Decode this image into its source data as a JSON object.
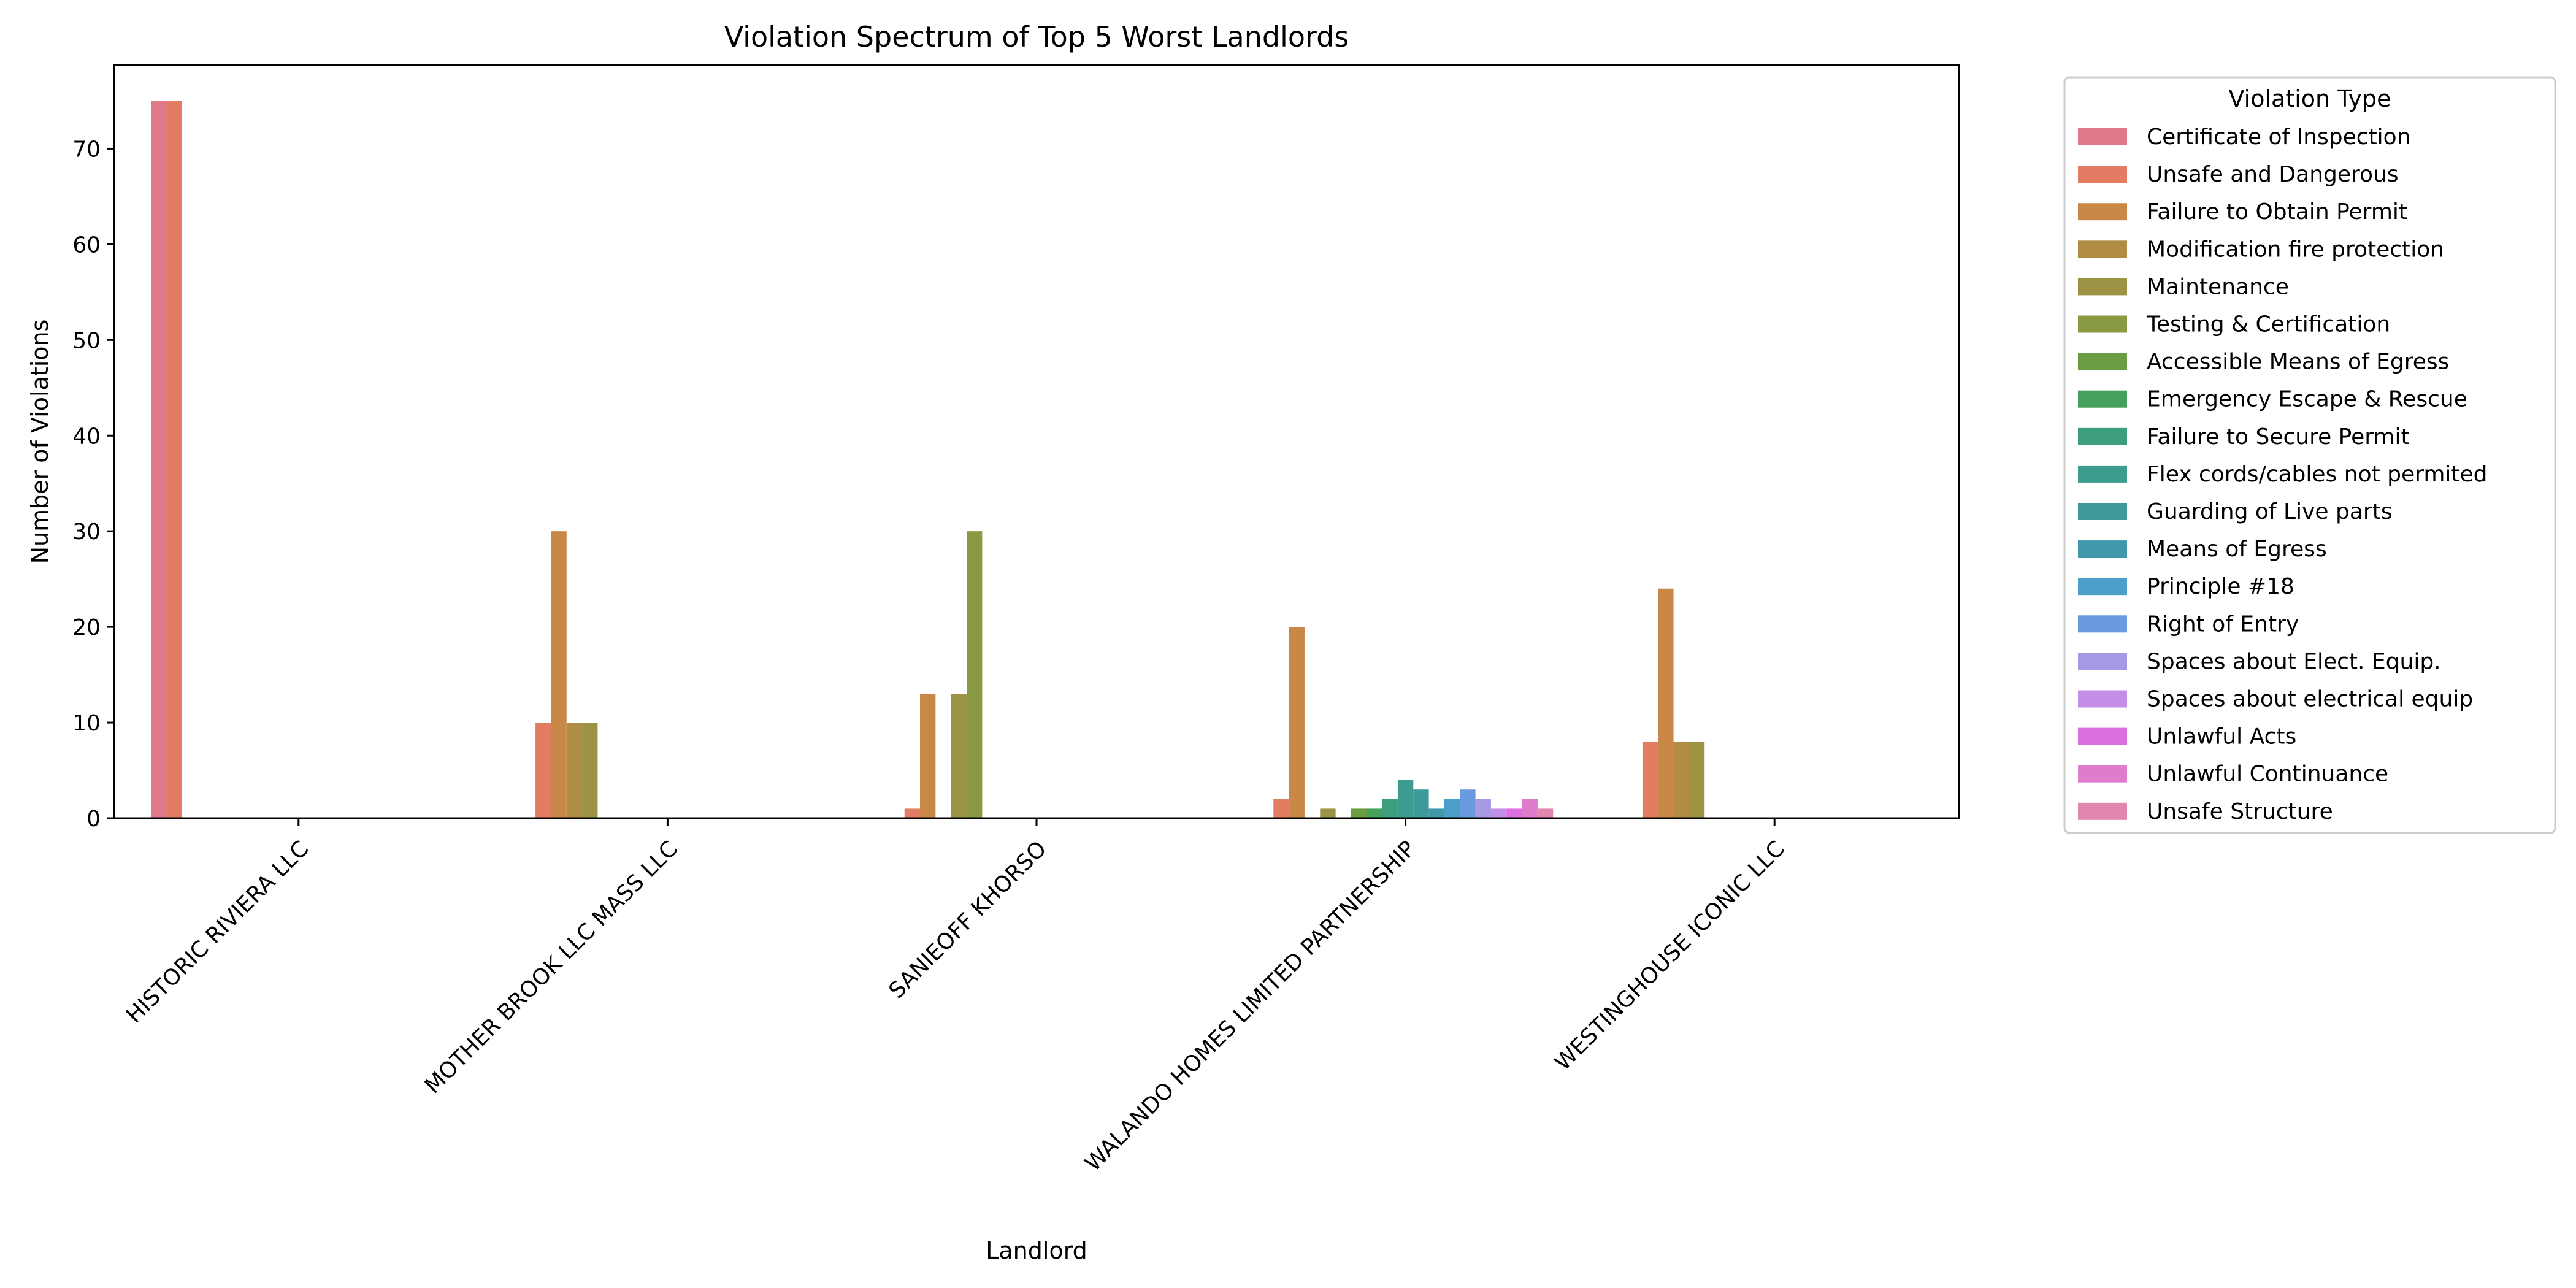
{
  "chart_data": {
    "type": "bar",
    "title": "Violation Spectrum of Top 5 Worst Landlords",
    "xlabel": "Landlord",
    "ylabel": "Number of Violations",
    "ylim": [
      0,
      78.75
    ],
    "yticks": [
      0,
      10,
      20,
      30,
      40,
      50,
      60,
      70
    ],
    "grid": false,
    "legend": {
      "title": "Violation Type",
      "placement": "outside-right"
    },
    "categories": [
      "HISTORIC RIVIERA LLC",
      "MOTHER BROOK LLC MASS LLC",
      "SANIEOFF KHORSO",
      "WALANDO HOMES LIMITED PARTNERSHIP",
      "WESTINGHOUSE ICONIC LLC"
    ],
    "series": [
      {
        "name": "Certificate of Inspection",
        "color": "#e0788c",
        "values": [
          75,
          0,
          0,
          0,
          0
        ]
      },
      {
        "name": "Unsafe and Dangerous",
        "color": "#e27c62",
        "values": [
          75,
          10,
          1,
          2,
          8
        ]
      },
      {
        "name": "Failure to Obtain Permit",
        "color": "#c98848",
        "values": [
          0,
          30,
          13,
          20,
          24
        ]
      },
      {
        "name": "Modification fire protection",
        "color": "#b08c44",
        "values": [
          0,
          10,
          0,
          0,
          8
        ]
      },
      {
        "name": "Maintenance",
        "color": "#9c9444",
        "values": [
          0,
          10,
          13,
          1,
          8
        ]
      },
      {
        "name": "Testing & Certification",
        "color": "#889a42",
        "values": [
          0,
          0,
          30,
          0,
          0
        ]
      },
      {
        "name": "Accessible Means of Egress",
        "color": "#6a9e42",
        "values": [
          0,
          0,
          0,
          1,
          0
        ]
      },
      {
        "name": "Emergency Escape & Rescue",
        "color": "#44a05a",
        "values": [
          0,
          0,
          0,
          1,
          0
        ]
      },
      {
        "name": "Failure to Secure Permit",
        "color": "#3c9e7c",
        "values": [
          0,
          0,
          0,
          2,
          0
        ]
      },
      {
        "name": "Flex cords/cables not permited",
        "color": "#3c9c8e",
        "values": [
          0,
          0,
          0,
          4,
          0
        ]
      },
      {
        "name": "Guarding of Live parts",
        "color": "#3e9a9a",
        "values": [
          0,
          0,
          0,
          3,
          0
        ]
      },
      {
        "name": "Means of Egress",
        "color": "#4098aa",
        "values": [
          0,
          0,
          0,
          1,
          0
        ]
      },
      {
        "name": "Principle #18",
        "color": "#4aa0c8",
        "values": [
          0,
          0,
          0,
          2,
          0
        ]
      },
      {
        "name": "Right of Entry",
        "color": "#6a9ae0",
        "values": [
          0,
          0,
          0,
          3,
          0
        ]
      },
      {
        "name": "Spaces about Elect. Equip.",
        "color": "#a69ae4",
        "values": [
          0,
          0,
          0,
          2,
          0
        ]
      },
      {
        "name": "Spaces about electrical equip",
        "color": "#c48ee6",
        "values": [
          0,
          0,
          0,
          1,
          0
        ]
      },
      {
        "name": "Unlawful Acts",
        "color": "#dc6ee0",
        "values": [
          0,
          0,
          0,
          1,
          0
        ]
      },
      {
        "name": "Unlawful Continuance",
        "color": "#e07ccc",
        "values": [
          0,
          0,
          0,
          2,
          0
        ]
      },
      {
        "name": "Unsafe Structure",
        "color": "#e286ae",
        "values": [
          0,
          0,
          0,
          1,
          0
        ]
      }
    ]
  }
}
